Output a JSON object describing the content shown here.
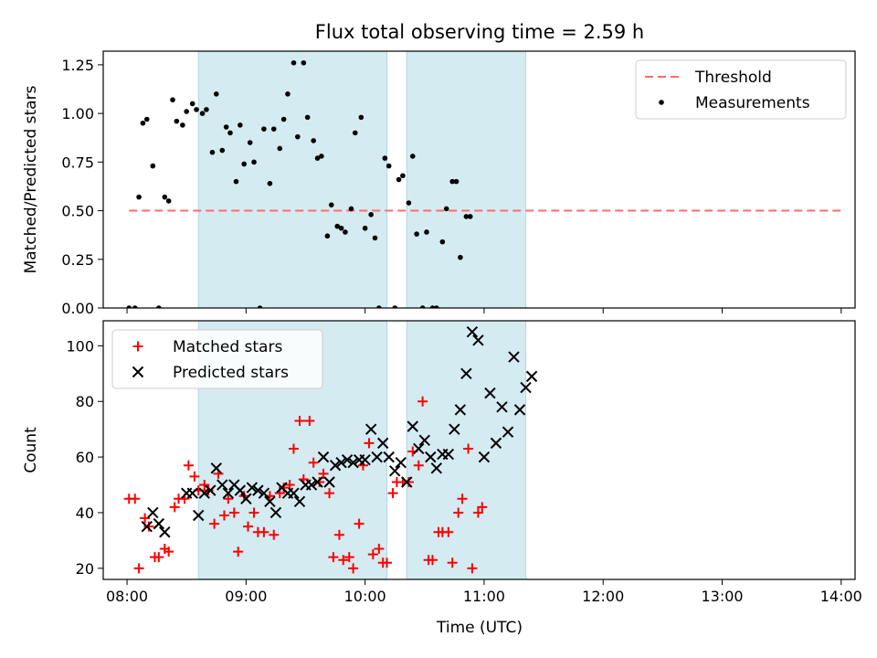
{
  "colors": {
    "shade": "#add8e6",
    "threshold": "#ff6b6b",
    "measurement": "#000000",
    "matched": "#ff0000",
    "predicted": "#000000"
  },
  "chart_data": {
    "type": "scatter",
    "title": "Flux total observing time = 2.59 h",
    "xlabel": "Time (UTC)",
    "x_ticks": [
      "08:00",
      "09:00",
      "10:00",
      "11:00",
      "12:00",
      "13:00",
      "14:00"
    ],
    "xlim": [
      "07:48",
      "14:07"
    ],
    "shaded_intervals": [
      [
        "08:36",
        "10:11"
      ],
      [
        "10:21",
        "11:21"
      ]
    ],
    "panels": [
      {
        "ylabel": "Matched/Predicted stars",
        "ylim": [
          0,
          1.32
        ],
        "y_ticks": [
          "0.00",
          "0.25",
          "0.50",
          "0.75",
          "1.00",
          "1.25"
        ],
        "legend": {
          "position": "top-right",
          "entries": [
            "Threshold",
            "Measurements"
          ]
        },
        "threshold": {
          "name": "Threshold",
          "value": 0.5,
          "x_range": [
            "08:01",
            "14:00"
          ],
          "style": "dashed"
        },
        "series": [
          {
            "name": "Measurements",
            "marker": "dot",
            "points": [
              [
                "08:01",
                0.0
              ],
              [
                "08:04",
                0.0
              ],
              [
                "08:06",
                0.57
              ],
              [
                "08:08",
                0.95
              ],
              [
                "08:10",
                0.97
              ],
              [
                "08:13",
                0.73
              ],
              [
                "08:16",
                0.0
              ],
              [
                "08:19",
                0.57
              ],
              [
                "08:21",
                0.55
              ],
              [
                "08:23",
                1.07
              ],
              [
                "08:25",
                0.96
              ],
              [
                "08:28",
                0.94
              ],
              [
                "08:30",
                1.01
              ],
              [
                "08:33",
                1.05
              ],
              [
                "08:35",
                1.02
              ],
              [
                "08:38",
                1.0
              ],
              [
                "08:40",
                1.02
              ],
              [
                "08:43",
                0.8
              ],
              [
                "08:45",
                1.1
              ],
              [
                "08:48",
                0.81
              ],
              [
                "08:50",
                0.93
              ],
              [
                "08:52",
                0.9
              ],
              [
                "08:55",
                0.65
              ],
              [
                "08:57",
                0.94
              ],
              [
                "08:59",
                0.74
              ],
              [
                "09:02",
                0.85
              ],
              [
                "09:04",
                0.75
              ],
              [
                "09:07",
                0.0
              ],
              [
                "09:09",
                0.92
              ],
              [
                "09:12",
                0.64
              ],
              [
                "09:14",
                0.92
              ],
              [
                "09:17",
                0.82
              ],
              [
                "09:19",
                0.97
              ],
              [
                "09:21",
                1.1
              ],
              [
                "09:24",
                1.26
              ],
              [
                "09:26",
                0.88
              ],
              [
                "09:29",
                1.26
              ],
              [
                "09:31",
                0.98
              ],
              [
                "09:34",
                0.86
              ],
              [
                "09:36",
                0.77
              ],
              [
                "09:38",
                0.78
              ],
              [
                "09:41",
                0.37
              ],
              [
                "09:43",
                0.53
              ],
              [
                "09:46",
                0.42
              ],
              [
                "09:48",
                0.41
              ],
              [
                "09:50",
                0.39
              ],
              [
                "09:53",
                0.51
              ],
              [
                "09:55",
                0.9
              ],
              [
                "09:58",
                0.98
              ],
              [
                "10:00",
                0.41
              ],
              [
                "10:03",
                0.48
              ],
              [
                "10:05",
                0.36
              ],
              [
                "10:07",
                0.0
              ],
              [
                "10:10",
                0.77
              ],
              [
                "10:12",
                0.73
              ],
              [
                "10:15",
                0.0
              ],
              [
                "10:17",
                0.66
              ],
              [
                "10:19",
                0.68
              ],
              [
                "10:22",
                0.54
              ],
              [
                "10:24",
                0.78
              ],
              [
                "10:26",
                0.38
              ],
              [
                "10:29",
                0.0
              ],
              [
                "10:31",
                0.39
              ],
              [
                "10:34",
                0.0
              ],
              [
                "10:36",
                0.0
              ],
              [
                "10:39",
                0.34
              ],
              [
                "10:41",
                0.51
              ],
              [
                "10:44",
                0.65
              ],
              [
                "10:46",
                0.65
              ],
              [
                "10:48",
                0.26
              ],
              [
                "10:51",
                0.47
              ],
              [
                "10:53",
                0.47
              ]
            ]
          }
        ]
      },
      {
        "ylabel": "Count",
        "ylim": [
          16,
          109
        ],
        "y_ticks": [
          "20",
          "40",
          "60",
          "80",
          "100"
        ],
        "legend": {
          "position": "top-left",
          "entries": [
            "Matched stars",
            "Predicted stars"
          ]
        },
        "series": [
          {
            "name": "Matched stars",
            "marker": "plus",
            "points": [
              [
                "08:01",
                45
              ],
              [
                "08:04",
                45
              ],
              [
                "08:06",
                20
              ],
              [
                "08:09",
                38
              ],
              [
                "08:11",
                35
              ],
              [
                "08:14",
                24
              ],
              [
                "08:16",
                24
              ],
              [
                "08:19",
                27
              ],
              [
                "08:21",
                26
              ],
              [
                "08:24",
                42
              ],
              [
                "08:26",
                45
              ],
              [
                "08:29",
                45
              ],
              [
                "08:31",
                57
              ],
              [
                "08:34",
                53
              ],
              [
                "08:36",
                48
              ],
              [
                "08:39",
                50
              ],
              [
                "08:41",
                48
              ],
              [
                "08:44",
                36
              ],
              [
                "08:46",
                54
              ],
              [
                "08:49",
                39
              ],
              [
                "08:51",
                45
              ],
              [
                "08:54",
                40
              ],
              [
                "08:56",
                26
              ],
              [
                "08:59",
                46
              ],
              [
                "09:01",
                35
              ],
              [
                "09:04",
                40
              ],
              [
                "09:06",
                33
              ],
              [
                "09:09",
                33
              ],
              [
                "09:12",
                46
              ],
              [
                "09:14",
                32
              ],
              [
                "09:17",
                47
              ],
              [
                "09:19",
                49
              ],
              [
                "09:22",
                50
              ],
              [
                "09:24",
                63
              ],
              [
                "09:27",
                73
              ],
              [
                "09:29",
                52
              ],
              [
                "09:32",
                73
              ],
              [
                "09:34",
                58
              ],
              [
                "09:37",
                51
              ],
              [
                "09:39",
                54
              ],
              [
                "09:42",
                47
              ],
              [
                "09:44",
                24
              ],
              [
                "09:47",
                32
              ],
              [
                "09:49",
                23
              ],
              [
                "09:52",
                24
              ],
              [
                "09:54",
                20
              ],
              [
                "09:57",
                36
              ],
              [
                "09:59",
                57
              ],
              [
                "10:02",
                65
              ],
              [
                "10:04",
                25
              ],
              [
                "10:07",
                27
              ],
              [
                "10:09",
                22
              ],
              [
                "10:11",
                22
              ],
              [
                "10:14",
                47
              ],
              [
                "10:16",
                51
              ],
              [
                "10:19",
                51
              ],
              [
                "10:22",
                51
              ],
              [
                "10:24",
                62
              ],
              [
                "10:27",
                57
              ],
              [
                "10:29",
                80
              ],
              [
                "10:32",
                23
              ],
              [
                "10:34",
                23
              ],
              [
                "10:37",
                33
              ],
              [
                "10:39",
                33
              ],
              [
                "10:42",
                33
              ],
              [
                "10:44",
                22
              ],
              [
                "10:47",
                40
              ],
              [
                "10:49",
                45
              ],
              [
                "10:52",
                63
              ],
              [
                "10:54",
                20
              ],
              [
                "10:57",
                40
              ],
              [
                "10:59",
                42
              ]
            ]
          },
          {
            "name": "Predicted stars",
            "marker": "x",
            "points": [
              [
                "08:10",
                35
              ],
              [
                "08:13",
                40
              ],
              [
                "08:16",
                36
              ],
              [
                "08:19",
                33
              ],
              [
                "08:30",
                47
              ],
              [
                "08:33",
                47
              ],
              [
                "08:36",
                39
              ],
              [
                "08:39",
                47
              ],
              [
                "08:42",
                48
              ],
              [
                "08:45",
                56
              ],
              [
                "08:48",
                50
              ],
              [
                "08:51",
                47
              ],
              [
                "08:54",
                50
              ],
              [
                "08:57",
                48
              ],
              [
                "09:00",
                45
              ],
              [
                "09:03",
                49
              ],
              [
                "09:06",
                48
              ],
              [
                "09:09",
                47
              ],
              [
                "09:12",
                44
              ],
              [
                "09:15",
                40
              ],
              [
                "09:18",
                49
              ],
              [
                "09:21",
                47
              ],
              [
                "09:24",
                47
              ],
              [
                "09:27",
                44
              ],
              [
                "09:30",
                50
              ],
              [
                "09:33",
                50
              ],
              [
                "09:36",
                51
              ],
              [
                "09:39",
                60
              ],
              [
                "09:42",
                51
              ],
              [
                "09:45",
                57
              ],
              [
                "09:48",
                58
              ],
              [
                "09:51",
                59
              ],
              [
                "09:54",
                58
              ],
              [
                "09:57",
                59
              ],
              [
                "10:00",
                59
              ],
              [
                "10:03",
                70
              ],
              [
                "10:06",
                60
              ],
              [
                "10:09",
                65
              ],
              [
                "10:12",
                60
              ],
              [
                "10:15",
                55
              ],
              [
                "10:18",
                58
              ],
              [
                "10:21",
                51
              ],
              [
                "10:24",
                71
              ],
              [
                "10:27",
                63
              ],
              [
                "10:30",
                66
              ],
              [
                "10:33",
                60
              ],
              [
                "10:36",
                56
              ],
              [
                "10:39",
                61
              ],
              [
                "10:42",
                61
              ],
              [
                "10:45",
                70
              ],
              [
                "10:48",
                77
              ],
              [
                "10:51",
                90
              ],
              [
                "10:54",
                105
              ],
              [
                "10:57",
                102
              ],
              [
                "11:00",
                60
              ],
              [
                "11:03",
                83
              ],
              [
                "11:06",
                65
              ],
              [
                "11:09",
                78
              ],
              [
                "11:12",
                69
              ],
              [
                "11:15",
                96
              ],
              [
                "11:18",
                77
              ],
              [
                "11:21",
                85
              ],
              [
                "11:24",
                89
              ]
            ]
          }
        ]
      }
    ]
  }
}
